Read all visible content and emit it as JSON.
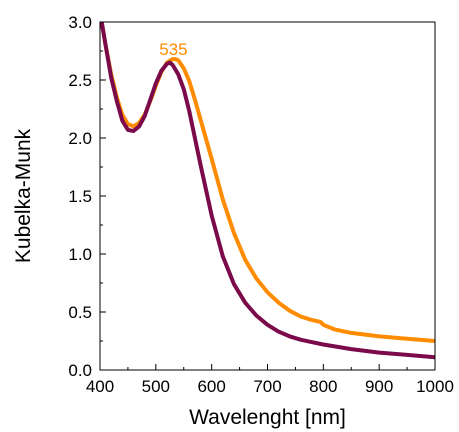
{
  "chart_data": {
    "type": "line",
    "xlabel": "Wavelenght [nm]",
    "ylabel": "Kubelka-Munk",
    "xlim": [
      400,
      1000
    ],
    "ylim": [
      0.0,
      3.0
    ],
    "xticks": [
      400,
      500,
      600,
      700,
      800,
      900,
      1000
    ],
    "yticks": [
      0.0,
      0.5,
      1.0,
      1.5,
      2.0,
      2.5,
      3.0
    ],
    "xtick_labels": [
      "400",
      "500",
      "600",
      "700",
      "800",
      "900",
      "1000"
    ],
    "ytick_labels": [
      "0.0",
      "0.5",
      "1.0",
      "1.5",
      "2.0",
      "2.5",
      "3.0"
    ],
    "grid": false,
    "legend": "none",
    "annotations": [
      {
        "text": "535",
        "x": 535,
        "y": 2.68,
        "color": "#ff8c00"
      }
    ],
    "series": [
      {
        "color": "#ff8c00",
        "x": [
          403,
          410,
          420,
          430,
          440,
          450,
          460,
          470,
          480,
          490,
          500,
          510,
          520,
          530,
          535,
          540,
          550,
          560,
          570,
          580,
          600,
          620,
          640,
          660,
          680,
          700,
          720,
          740,
          760,
          780,
          795,
          800,
          820,
          850,
          900,
          950,
          1000
        ],
        "y": [
          3.0,
          2.8,
          2.55,
          2.35,
          2.2,
          2.12,
          2.1,
          2.13,
          2.2,
          2.32,
          2.45,
          2.57,
          2.65,
          2.68,
          2.68,
          2.67,
          2.6,
          2.49,
          2.33,
          2.16,
          1.82,
          1.47,
          1.18,
          0.95,
          0.79,
          0.67,
          0.58,
          0.51,
          0.46,
          0.43,
          0.415,
          0.39,
          0.35,
          0.32,
          0.29,
          0.27,
          0.25
        ]
      },
      {
        "color": "#7a0a4a",
        "x": [
          403,
          410,
          420,
          430,
          440,
          450,
          460,
          470,
          480,
          490,
          500,
          510,
          520,
          525,
          530,
          540,
          550,
          560,
          570,
          580,
          600,
          620,
          640,
          660,
          680,
          700,
          720,
          740,
          760,
          780,
          800,
          850,
          900,
          950,
          1000
        ],
        "y": [
          3.0,
          2.8,
          2.52,
          2.32,
          2.15,
          2.07,
          2.06,
          2.1,
          2.19,
          2.33,
          2.47,
          2.58,
          2.64,
          2.65,
          2.63,
          2.55,
          2.42,
          2.23,
          2.0,
          1.77,
          1.33,
          0.98,
          0.74,
          0.58,
          0.47,
          0.39,
          0.33,
          0.29,
          0.26,
          0.24,
          0.22,
          0.18,
          0.15,
          0.13,
          0.11
        ]
      }
    ]
  }
}
